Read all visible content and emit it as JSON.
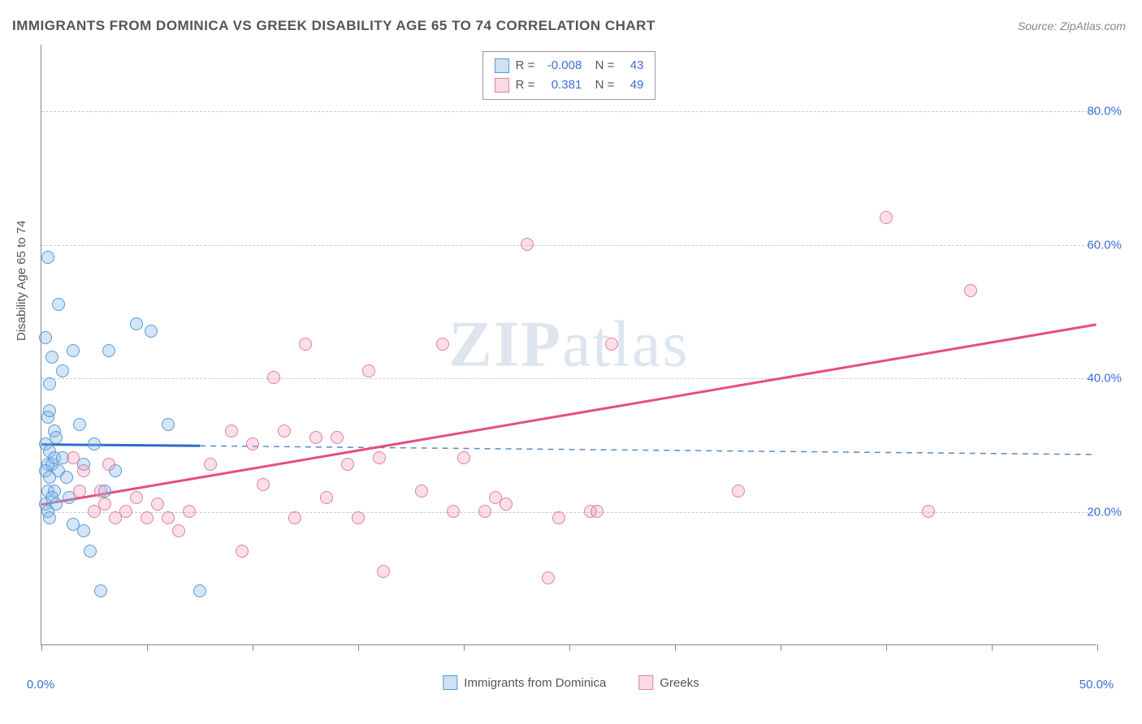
{
  "chart": {
    "type": "scatter",
    "title": "IMMIGRANTS FROM DOMINICA VS GREEK DISABILITY AGE 65 TO 74 CORRELATION CHART",
    "source": "Source: ZipAtlas.com",
    "ylabel": "Disability Age 65 to 74",
    "watermark": "ZIPatlas",
    "background_color": "#ffffff",
    "grid_color": "#cccccc",
    "axis_color": "#888888",
    "tick_label_color": "#3b6fd6",
    "axis_label_color": "#555555",
    "xlim": [
      0,
      50
    ],
    "ylim": [
      0,
      90
    ],
    "x_ticks": [
      0,
      5,
      10,
      15,
      20,
      25,
      30,
      35,
      40,
      45,
      50
    ],
    "x_tick_labels": {
      "0": "0.0%",
      "50": "50.0%"
    },
    "y_grid": [
      20,
      40,
      60,
      80
    ],
    "y_tick_labels": {
      "20": "20.0%",
      "40": "40.0%",
      "60": "60.0%",
      "80": "80.0%"
    },
    "marker_size": 16,
    "series": [
      {
        "name": "Immigrants from Dominica",
        "color_fill": "rgba(130,180,230,0.35)",
        "color_stroke": "#5a9bd5",
        "R": "-0.008",
        "N": "43",
        "regression": {
          "x1": 0,
          "y1": 30,
          "x2": 7.5,
          "y2": 29.8,
          "extrapolate_x1": 7.5,
          "extrapolate_y1": 29.8,
          "extrapolate_x2": 50,
          "extrapolate_y2": 28.5,
          "solid_color": "#2d6bd0",
          "solid_width": 3,
          "dash_color": "#5a8bc5",
          "dash_width": 1.5
        },
        "points": [
          [
            0.3,
            58
          ],
          [
            0.8,
            51
          ],
          [
            0.2,
            46
          ],
          [
            0.5,
            43
          ],
          [
            0.4,
            39
          ],
          [
            1.5,
            44
          ],
          [
            0.3,
            34
          ],
          [
            0.6,
            32
          ],
          [
            0.2,
            30
          ],
          [
            0.4,
            29
          ],
          [
            0.7,
            31
          ],
          [
            0.3,
            27
          ],
          [
            0.5,
            27
          ],
          [
            0.6,
            28
          ],
          [
            0.2,
            26
          ],
          [
            0.8,
            26
          ],
          [
            0.4,
            25
          ],
          [
            0.3,
            23
          ],
          [
            0.6,
            23
          ],
          [
            0.5,
            22
          ],
          [
            0.2,
            21
          ],
          [
            0.7,
            21
          ],
          [
            0.3,
            20
          ],
          [
            0.4,
            19
          ],
          [
            1.0,
            28
          ],
          [
            1.2,
            25
          ],
          [
            1.8,
            33
          ],
          [
            2.0,
            27
          ],
          [
            2.5,
            30
          ],
          [
            1.3,
            22
          ],
          [
            2.0,
            17
          ],
          [
            1.5,
            18
          ],
          [
            2.3,
            14
          ],
          [
            3.0,
            23
          ],
          [
            3.5,
            26
          ],
          [
            4.5,
            48
          ],
          [
            5.2,
            47
          ],
          [
            6.0,
            33
          ],
          [
            7.5,
            8
          ],
          [
            2.8,
            8
          ],
          [
            3.2,
            44
          ],
          [
            1.0,
            41
          ],
          [
            0.4,
            35
          ]
        ]
      },
      {
        "name": "Greeks",
        "color_fill": "rgba(240,150,180,0.3)",
        "color_stroke": "#e37fa0",
        "R": "0.381",
        "N": "49",
        "regression": {
          "x1": 0,
          "y1": 21,
          "x2": 50,
          "y2": 48,
          "solid_color": "#e64d82",
          "solid_width": 3
        },
        "points": [
          [
            1.5,
            28
          ],
          [
            2.0,
            26
          ],
          [
            2.5,
            20
          ],
          [
            3.0,
            21
          ],
          [
            3.5,
            19
          ],
          [
            4.0,
            20
          ],
          [
            4.5,
            22
          ],
          [
            5.0,
            19
          ],
          [
            5.5,
            21
          ],
          [
            6.0,
            19
          ],
          [
            6.5,
            17
          ],
          [
            7.0,
            20
          ],
          [
            9.0,
            32
          ],
          [
            9.5,
            14
          ],
          [
            10.0,
            30
          ],
          [
            11.0,
            40
          ],
          [
            11.5,
            32
          ],
          [
            12.0,
            19
          ],
          [
            12.5,
            45
          ],
          [
            13.0,
            31
          ],
          [
            13.5,
            22
          ],
          [
            14.0,
            31
          ],
          [
            14.5,
            27
          ],
          [
            15.0,
            19
          ],
          [
            15.5,
            41
          ],
          [
            16.0,
            28
          ],
          [
            16.2,
            11
          ],
          [
            19.0,
            45
          ],
          [
            19.5,
            20
          ],
          [
            20.0,
            28
          ],
          [
            21.0,
            20
          ],
          [
            21.5,
            22
          ],
          [
            22.0,
            21
          ],
          [
            23.0,
            60
          ],
          [
            24.0,
            10
          ],
          [
            24.5,
            19
          ],
          [
            26.0,
            20
          ],
          [
            26.3,
            20
          ],
          [
            27.0,
            45
          ],
          [
            33.0,
            23
          ],
          [
            40.0,
            64
          ],
          [
            42.0,
            20
          ],
          [
            44.0,
            53
          ],
          [
            2.8,
            23
          ],
          [
            3.2,
            27
          ],
          [
            1.8,
            23
          ],
          [
            8.0,
            27
          ],
          [
            10.5,
            24
          ],
          [
            18.0,
            23
          ]
        ]
      }
    ],
    "legend_bottom": [
      {
        "swatch": "blue",
        "label": "Immigrants from Dominica"
      },
      {
        "swatch": "pink",
        "label": "Greeks"
      }
    ]
  }
}
